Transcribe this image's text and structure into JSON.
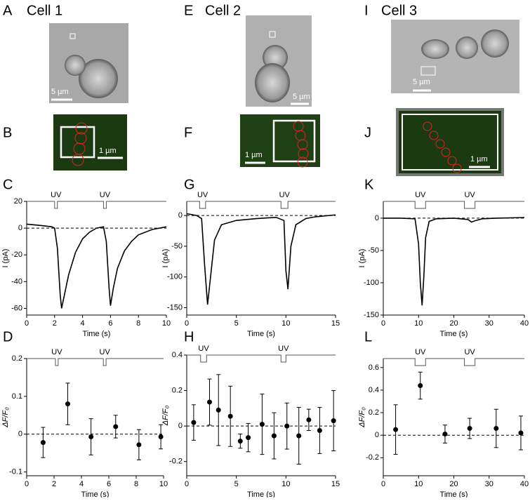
{
  "panels": [
    "A",
    "E",
    "I",
    "B",
    "F",
    "J",
    "C",
    "G",
    "K",
    "D",
    "H",
    "L"
  ],
  "cells": [
    "Cell 1",
    "Cell 2",
    "Cell 3"
  ],
  "scale_bars": [
    "5 µm",
    "5 µm",
    "5 µm",
    "1 µm",
    "1 µm",
    "1 µm"
  ],
  "chart_data": [
    {
      "type": "line",
      "x_label": "Time (s)",
      "y_label": "I (pA)",
      "stim_label": "UV",
      "stimulus": [
        [
          2.0,
          2.2
        ],
        [
          5.5,
          5.7
        ]
      ],
      "zero_line": true,
      "color": "#000000",
      "x": [
        0,
        1,
        1.8,
        2.0,
        2.2,
        2.4,
        2.5,
        2.7,
        3,
        3.5,
        4,
        4.5,
        5,
        5.5,
        5.7,
        5.9,
        6.0,
        6.2,
        6.5,
        7,
        7.5,
        8,
        9,
        10
      ],
      "values": [
        3,
        2,
        1,
        0,
        -15,
        -50,
        -60,
        -50,
        -35,
        -18,
        -8,
        -3,
        0,
        1,
        -10,
        -45,
        -58,
        -45,
        -30,
        -17,
        -10,
        -5,
        -1,
        1
      ],
      "xlim": [
        0,
        10
      ],
      "ylim": [
        -65,
        20
      ],
      "xticks": [
        0,
        2,
        4,
        6,
        8,
        10
      ],
      "yticks": [
        -60,
        -40,
        -20,
        0,
        20
      ]
    },
    {
      "type": "line",
      "x_label": "Time (s)",
      "y_label": "I (pA)",
      "stim_label": "UV",
      "stimulus": [
        [
          1.3,
          1.9
        ],
        [
          9.5,
          10.2
        ]
      ],
      "zero_line": true,
      "color": "#000000",
      "x": [
        0,
        1,
        1.5,
        1.8,
        2.1,
        2.4,
        2.8,
        3.5,
        5,
        7,
        9,
        9.8,
        10.0,
        10.2,
        10.5,
        11,
        12,
        13,
        15
      ],
      "values": [
        3,
        0,
        -5,
        -80,
        -145,
        -100,
        -40,
        -15,
        -8,
        -5,
        -3,
        -8,
        -90,
        -120,
        -50,
        -15,
        -5,
        -2,
        1
      ],
      "xlim": [
        0,
        15
      ],
      "ylim": [
        -162,
        23
      ],
      "xticks": [
        0,
        5,
        10,
        15
      ],
      "yticks": [
        -150,
        -100,
        -50,
        0
      ]
    },
    {
      "type": "line",
      "x_label": "Time (s)",
      "y_label": "I (pA)",
      "stim_label": "UV",
      "stimulus": [
        [
          9,
          12
        ],
        [
          23,
          26
        ]
      ],
      "zero_line": true,
      "color": "#000000",
      "x": [
        0,
        5,
        9,
        10,
        10.5,
        11,
        11.5,
        12,
        13,
        15,
        20,
        24,
        25,
        26,
        28,
        32,
        40
      ],
      "values": [
        0,
        0,
        -1,
        -40,
        -100,
        -135,
        -90,
        -30,
        -5,
        -1,
        0,
        -2,
        -6,
        -4,
        -1,
        0,
        1
      ],
      "xlim": [
        0,
        40
      ],
      "ylim": [
        -150,
        26
      ],
      "xticks": [
        0,
        10,
        20,
        30,
        40
      ],
      "yticks": [
        -150,
        -100,
        -50,
        0
      ]
    },
    {
      "type": "errorbar",
      "x_label": "Time (s)",
      "y_label": "ΔF/F₀",
      "stim_label": "UV",
      "stimulus": [
        [
          2.1,
          2.3
        ],
        [
          5.6,
          5.8
        ]
      ],
      "zero_line": true,
      "color": "#000000",
      "x": [
        1.2,
        3,
        4.7,
        6.5,
        8.2,
        9.8
      ],
      "values": [
        -0.022,
        0.08,
        -0.007,
        0.02,
        -0.028,
        -0.007
      ],
      "errors": [
        0.04,
        0.055,
        0.048,
        0.03,
        0.04,
        0.032
      ],
      "xlim": [
        0,
        10
      ],
      "ylim": [
        -0.11,
        0.2
      ],
      "xticks": [
        0,
        2,
        4,
        6,
        8,
        10
      ],
      "yticks": [
        -0.1,
        0,
        0.1,
        0.2
      ]
    },
    {
      "type": "errorbar",
      "x_label": "Time (s)",
      "y_label": "ΔF/F₀",
      "stim_label": "UV",
      "stimulus": [
        [
          1.4,
          2.0
        ],
        [
          9.5,
          10.0
        ]
      ],
      "zero_line": true,
      "color": "#000000",
      "x": [
        0.7,
        2.3,
        3.2,
        4.4,
        5.4,
        6.2,
        7.6,
        8.8,
        10.1,
        11.3,
        12.3,
        13.4,
        14.8
      ],
      "values": [
        0.02,
        0.135,
        0.09,
        0.055,
        -0.085,
        -0.065,
        0.01,
        -0.055,
        0,
        -0.055,
        0.035,
        -0.025,
        0.03
      ],
      "errors": [
        0.1,
        0.13,
        0.2,
        0.17,
        0.04,
        0.08,
        0.17,
        0.13,
        0.13,
        0.16,
        0.06,
        0.13,
        0.17
      ],
      "xlim": [
        0,
        15
      ],
      "ylim": [
        -0.28,
        0.4
      ],
      "xticks": [
        0,
        5,
        10,
        15
      ],
      "yticks": [
        -0.2,
        0,
        0.2,
        0.4
      ]
    },
    {
      "type": "errorbar",
      "x_label": "Time (s)",
      "y_label": "ΔF/F₀",
      "stim_label": "UV",
      "stimulus": [
        [
          9,
          12
        ],
        [
          23,
          26
        ]
      ],
      "zero_line": true,
      "color": "#000000",
      "x": [
        3.5,
        10.5,
        17.5,
        24.5,
        32,
        39
      ],
      "values": [
        0.05,
        0.44,
        0.01,
        0.06,
        0.06,
        0.02
      ],
      "errors": [
        0.22,
        0.12,
        0.08,
        0.09,
        0.17,
        0.15
      ],
      "xlim": [
        0,
        40
      ],
      "ylim": [
        -0.36,
        0.68
      ],
      "xticks": [
        0,
        10,
        20,
        30,
        40
      ],
      "yticks": [
        -0.2,
        0,
        0.2,
        0.4,
        0.6
      ]
    }
  ]
}
